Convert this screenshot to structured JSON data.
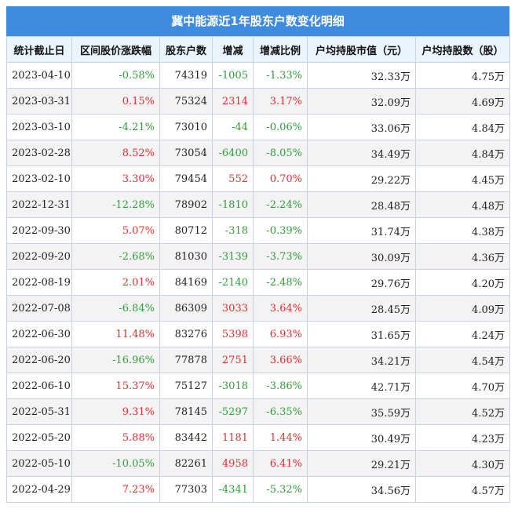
{
  "title": "冀中能源近1年股东户数变化明细",
  "colors": {
    "header_bg": "#3f8be0",
    "positive": "#e62e2e",
    "negative": "#2e9e3a"
  },
  "columns": [
    "统计截止日",
    "区间股价涨跌幅",
    "股东户数",
    "增减",
    "增减比例",
    "户均持股市值（元）",
    "户均持股数（股）"
  ],
  "rows": [
    {
      "date": "2023-04-10",
      "price_change": "-0.58%",
      "holders": "74319",
      "change": "-1005",
      "change_ratio": "-1.33%",
      "avg_value": "32.33万",
      "avg_shares": "4.75万"
    },
    {
      "date": "2023-03-31",
      "price_change": "0.15%",
      "holders": "75324",
      "change": "2314",
      "change_ratio": "3.17%",
      "avg_value": "32.09万",
      "avg_shares": "4.69万"
    },
    {
      "date": "2023-03-10",
      "price_change": "-4.21%",
      "holders": "73010",
      "change": "-44",
      "change_ratio": "-0.06%",
      "avg_value": "33.06万",
      "avg_shares": "4.84万"
    },
    {
      "date": "2023-02-28",
      "price_change": "8.52%",
      "holders": "73054",
      "change": "-6400",
      "change_ratio": "-8.05%",
      "avg_value": "34.49万",
      "avg_shares": "4.84万"
    },
    {
      "date": "2023-02-10",
      "price_change": "3.30%",
      "holders": "79454",
      "change": "552",
      "change_ratio": "0.70%",
      "avg_value": "29.22万",
      "avg_shares": "4.45万"
    },
    {
      "date": "2022-12-31",
      "price_change": "-12.28%",
      "holders": "78902",
      "change": "-1810",
      "change_ratio": "-2.24%",
      "avg_value": "28.48万",
      "avg_shares": "4.48万"
    },
    {
      "date": "2022-09-30",
      "price_change": "5.07%",
      "holders": "80712",
      "change": "-318",
      "change_ratio": "-0.39%",
      "avg_value": "31.74万",
      "avg_shares": "4.38万"
    },
    {
      "date": "2022-09-20",
      "price_change": "-2.68%",
      "holders": "81030",
      "change": "-3139",
      "change_ratio": "-3.73%",
      "avg_value": "30.09万",
      "avg_shares": "4.36万"
    },
    {
      "date": "2022-08-19",
      "price_change": "2.01%",
      "holders": "84169",
      "change": "-2140",
      "change_ratio": "-2.48%",
      "avg_value": "29.76万",
      "avg_shares": "4.20万"
    },
    {
      "date": "2022-07-08",
      "price_change": "-6.84%",
      "holders": "86309",
      "change": "3033",
      "change_ratio": "3.64%",
      "avg_value": "28.45万",
      "avg_shares": "4.09万"
    },
    {
      "date": "2022-06-30",
      "price_change": "11.48%",
      "holders": "83276",
      "change": "5398",
      "change_ratio": "6.93%",
      "avg_value": "31.65万",
      "avg_shares": "4.24万"
    },
    {
      "date": "2022-06-20",
      "price_change": "-16.96%",
      "holders": "77878",
      "change": "2751",
      "change_ratio": "3.66%",
      "avg_value": "34.21万",
      "avg_shares": "4.54万"
    },
    {
      "date": "2022-06-10",
      "price_change": "15.37%",
      "holders": "75127",
      "change": "-3018",
      "change_ratio": "-3.86%",
      "avg_value": "42.71万",
      "avg_shares": "4.70万"
    },
    {
      "date": "2022-05-31",
      "price_change": "9.31%",
      "holders": "78145",
      "change": "-5297",
      "change_ratio": "-6.35%",
      "avg_value": "35.59万",
      "avg_shares": "4.52万"
    },
    {
      "date": "2022-05-20",
      "price_change": "5.88%",
      "holders": "83442",
      "change": "1181",
      "change_ratio": "1.44%",
      "avg_value": "30.49万",
      "avg_shares": "4.23万"
    },
    {
      "date": "2022-05-10",
      "price_change": "-10.05%",
      "holders": "82261",
      "change": "4958",
      "change_ratio": "6.41%",
      "avg_value": "29.21万",
      "avg_shares": "4.30万"
    },
    {
      "date": "2022-04-29",
      "price_change": "7.23%",
      "holders": "77303",
      "change": "-4341",
      "change_ratio": "-5.32%",
      "avg_value": "34.56万",
      "avg_shares": "4.57万"
    }
  ]
}
